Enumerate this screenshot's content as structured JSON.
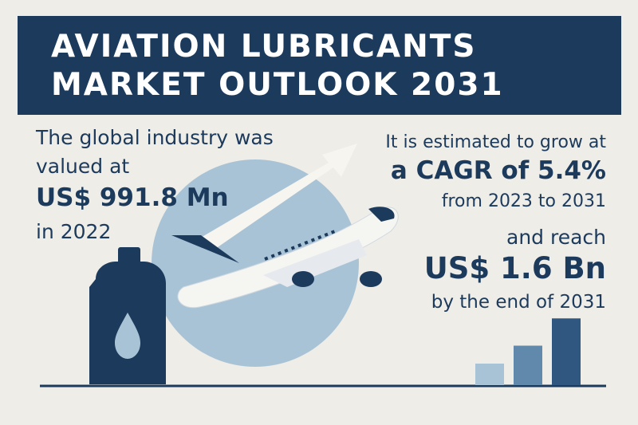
{
  "title": {
    "line1": "AVIATION LUBRICANTS",
    "line2": "MARKET OUTLOOK 2031"
  },
  "left": {
    "line1": "The global industry was",
    "line2": "valued at",
    "value": "US$ 991.8 Mn",
    "year": "in 2022"
  },
  "right": {
    "line1": "It is estimated to grow at",
    "cagr": "a CAGR of 5.4%",
    "period": "from 2023 to 2031",
    "reach": "and reach",
    "value": "US$ 1.6 Bn",
    "end": "by the end of 2031"
  },
  "icons": [
    "lubricant-bottle-icon",
    "airplane-icon",
    "growth-arrow-icon",
    "bar-chart-icon"
  ],
  "colors": {
    "navy": "#1c3a5c",
    "background": "#efede8",
    "circle": "#a9c3d6",
    "bar_light": "#a9c3d6",
    "bar_mid": "#6089ac",
    "bar_dark": "#2f5780"
  },
  "bars": [
    0.3,
    0.55,
    0.93
  ]
}
